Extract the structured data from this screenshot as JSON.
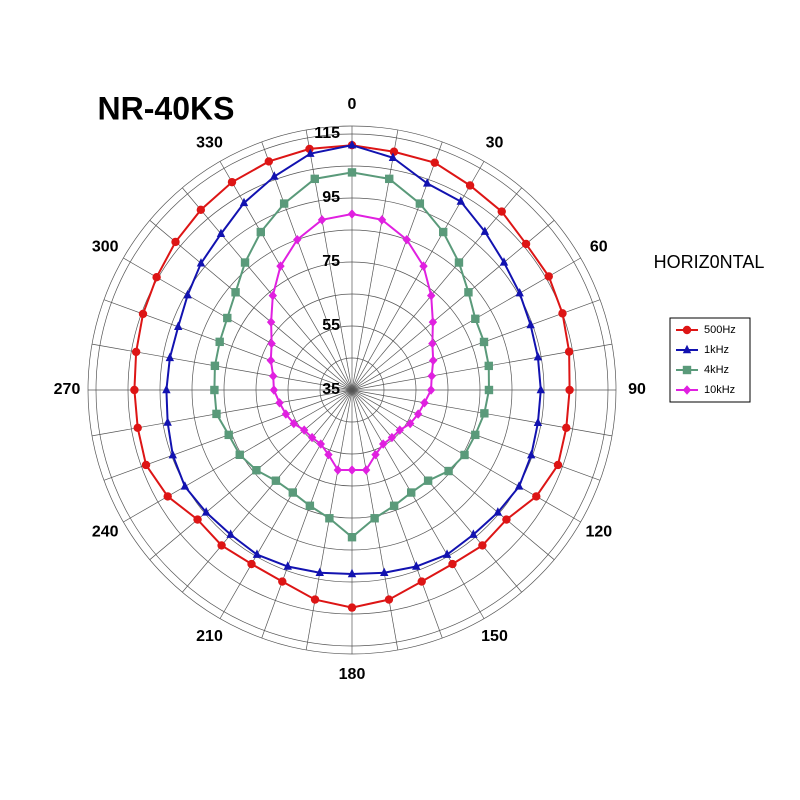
{
  "chart_data": {
    "type": "polar",
    "title": "NR-40KS",
    "annotation": "HORIZ0NTAL",
    "theta": [
      0,
      10,
      20,
      30,
      40,
      50,
      60,
      70,
      80,
      90,
      100,
      110,
      120,
      130,
      140,
      150,
      160,
      170,
      180,
      190,
      200,
      210,
      220,
      230,
      240,
      250,
      260,
      270,
      280,
      290,
      300,
      310,
      320,
      330,
      340,
      350
    ],
    "thetaticks": [
      0,
      30,
      60,
      90,
      120,
      150,
      180,
      210,
      240,
      270,
      300,
      330
    ],
    "rlim": [
      35,
      117.5
    ],
    "rticks": [
      35,
      55,
      75,
      95,
      115
    ],
    "legend": "right",
    "series": [
      {
        "name": "500Hz",
        "color": "#dd1515",
        "marker": "circle",
        "values": [
          111.5,
          110.6,
          110.6,
          108.8,
          107.8,
          106,
          106,
          105,
          103.9,
          103,
          103,
          103.5,
          101.5,
          98,
          98.4,
          97.8,
          98.7,
          101.5,
          103,
          101.5,
          98.7,
          97.8,
          98.4,
          98,
          101.5,
          103.5,
          103,
          103,
          103.5,
          104.5,
          105.5,
          107,
          108.5,
          110,
          111,
          111.5
        ]
      },
      {
        "name": "1kHz",
        "color": "#1212b0",
        "marker": "triangle",
        "values": [
          111.5,
          108.7,
          103.7,
          103,
          99.6,
          97,
          95.5,
          94.4,
          94,
          94,
          94,
          94.6,
          95.3,
          94.5,
          94,
          94.4,
          93.7,
          93,
          92.5,
          93,
          93.7,
          94.4,
          94,
          94.5,
          95.3,
          94.6,
          93.5,
          93,
          92.8,
          92.8,
          94.3,
          96.6,
          98.7,
          102.5,
          106,
          110
        ]
      },
      {
        "name": "4kHz",
        "color": "#5a9a7a",
        "marker": "square",
        "values": [
          103,
          102,
          97,
          92,
          87,
          82.5,
          79.5,
          78.9,
          78.4,
          77.8,
          77,
          76,
          75.6,
          74.4,
          72,
          72,
          73.5,
          75.7,
          81,
          75.7,
          73.5,
          72,
          72,
          74,
          75.5,
          76,
          78,
          78,
          78.5,
          79,
          80,
          82.5,
          87,
          92,
          97,
          102
        ]
      },
      {
        "name": "10kHz",
        "color": "#e020e0",
        "marker": "diamond",
        "values": [
          90,
          89,
          85,
          79.7,
          73.5,
          68,
          64,
          62,
          60.3,
          59.7,
          58,
          57,
          56,
          54.5,
          54.4,
          54.5,
          56.5,
          60.4,
          60,
          60.4,
          56.5,
          54.5,
          54.4,
          54.5,
          56,
          57,
          58,
          59.4,
          60,
          62,
          64,
          68,
          73.5,
          79.7,
          85,
          89
        ]
      }
    ]
  }
}
